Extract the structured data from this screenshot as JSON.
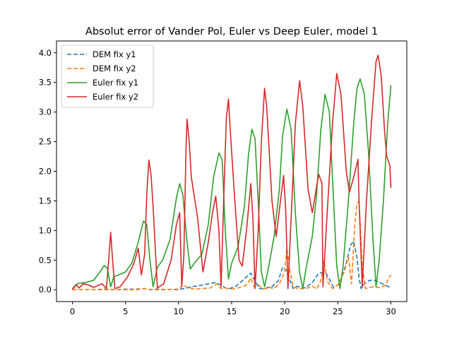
{
  "chart_data": {
    "type": "line",
    "title": "Absolut error of Vander Pol, Euler vs Deep Euler, model 1",
    "xlabel": "",
    "ylabel": "",
    "xlim": [
      -1.5,
      31.5
    ],
    "ylim": [
      -0.2,
      4.2
    ],
    "xticks": [
      0,
      5,
      10,
      15,
      20,
      25,
      30
    ],
    "yticks": [
      0.0,
      0.5,
      1.0,
      1.5,
      2.0,
      2.5,
      3.0,
      3.5,
      4.0
    ],
    "xtick_labels": [
      "0",
      "5",
      "10",
      "15",
      "20",
      "25",
      "30"
    ],
    "ytick_labels": [
      "0.0",
      "0.5",
      "1.0",
      "1.5",
      "2.0",
      "2.5",
      "3.0",
      "3.5",
      "4.0"
    ],
    "grid": false,
    "legend_position": "upper-left",
    "series": [
      {
        "name": "DEM fix y1",
        "color": "#1f77b4",
        "dash": "dashed",
        "points": [
          [
            0,
            0
          ],
          [
            1,
            0
          ],
          [
            2,
            0
          ],
          [
            3,
            0.01
          ],
          [
            4,
            0
          ],
          [
            5,
            0.01
          ],
          [
            6,
            0.01
          ],
          [
            6.8,
            0.02
          ],
          [
            7.2,
            0
          ],
          [
            8,
            0.01
          ],
          [
            9,
            0
          ],
          [
            10,
            0.01
          ],
          [
            10.6,
            0.02
          ],
          [
            11.2,
            0.05
          ],
          [
            12,
            0.07
          ],
          [
            12.8,
            0.1
          ],
          [
            13.4,
            0.12
          ],
          [
            14,
            0.08
          ],
          [
            14.4,
            0.03
          ],
          [
            14.8,
            0.02
          ],
          [
            15.4,
            0.06
          ],
          [
            16,
            0.15
          ],
          [
            16.8,
            0.28
          ],
          [
            17.2,
            0.15
          ],
          [
            17.6,
            0.02
          ],
          [
            18,
            0.02
          ],
          [
            18.8,
            0.05
          ],
          [
            19.4,
            0.15
          ],
          [
            19.8,
            0.38
          ],
          [
            20.2,
            0.32
          ],
          [
            20.5,
            0.15
          ],
          [
            20.8,
            0.02
          ],
          [
            21.2,
            0.06
          ],
          [
            21.6,
            0.02
          ],
          [
            22,
            0.04
          ],
          [
            22.6,
            0.12
          ],
          [
            23.2,
            0.28
          ],
          [
            23.8,
            0.3
          ],
          [
            24.2,
            0.18
          ],
          [
            24.6,
            0.04
          ],
          [
            25.2,
            0.1
          ],
          [
            25.8,
            0.45
          ],
          [
            26.2,
            0.75
          ],
          [
            26.5,
            0.82
          ],
          [
            26.8,
            0.55
          ],
          [
            27,
            0.2
          ],
          [
            27.2,
            0.02
          ],
          [
            27.5,
            0.1
          ],
          [
            28,
            0.16
          ],
          [
            28.6,
            0.15
          ],
          [
            29.2,
            0.1
          ],
          [
            29.8,
            0.05
          ],
          [
            30,
            0.03
          ]
        ]
      },
      {
        "name": "DEM fix y2",
        "color": "#ff7f0e",
        "dash": "dashed",
        "points": [
          [
            0,
            0
          ],
          [
            1,
            0
          ],
          [
            2,
            0
          ],
          [
            3,
            0
          ],
          [
            4,
            0
          ],
          [
            5,
            0
          ],
          [
            6,
            0
          ],
          [
            6.8,
            0.02
          ],
          [
            7.2,
            0
          ],
          [
            8,
            0
          ],
          [
            9,
            0
          ],
          [
            10,
            0
          ],
          [
            10.4,
            0.08
          ],
          [
            10.8,
            0.04
          ],
          [
            11.5,
            0.01
          ],
          [
            12.2,
            0.02
          ],
          [
            13,
            0.03
          ],
          [
            13.6,
            0.1
          ],
          [
            14,
            0.02
          ],
          [
            14.4,
            0.03
          ],
          [
            15,
            0.01
          ],
          [
            15.6,
            0.03
          ],
          [
            16.4,
            0.08
          ],
          [
            16.8,
            0.2
          ],
          [
            17.1,
            0.05
          ],
          [
            17.5,
            0.08
          ],
          [
            18,
            0.01
          ],
          [
            18.5,
            0.04
          ],
          [
            19,
            0.02
          ],
          [
            19.5,
            0.1
          ],
          [
            20,
            0.3
          ],
          [
            20.2,
            0.7
          ],
          [
            20.5,
            0.3
          ],
          [
            20.8,
            0.05
          ],
          [
            21.2,
            0.02
          ],
          [
            22,
            0.02
          ],
          [
            22.6,
            0.06
          ],
          [
            23,
            0.01
          ],
          [
            23.4,
            0.15
          ],
          [
            23.7,
            0.5
          ],
          [
            24,
            0.15
          ],
          [
            24.5,
            0.02
          ],
          [
            25,
            0.08
          ],
          [
            25.6,
            0.3
          ],
          [
            26,
            0.55
          ],
          [
            26.3,
            0.1
          ],
          [
            26.6,
            1.1
          ],
          [
            26.8,
            1.45
          ],
          [
            27,
            1.5
          ],
          [
            27.3,
            0.4
          ],
          [
            27.6,
            0.02
          ],
          [
            28,
            0.04
          ],
          [
            28.5,
            0.05
          ],
          [
            29,
            0.03
          ],
          [
            29.5,
            0.08
          ],
          [
            29.8,
            0.2
          ],
          [
            30,
            0.25
          ]
        ]
      },
      {
        "name": "Euler fix y1",
        "color": "#2ca02c",
        "dash": "solid",
        "points": [
          [
            0,
            0.02
          ],
          [
            0.3,
            0.08
          ],
          [
            0.6,
            0.11
          ],
          [
            1.2,
            0.12
          ],
          [
            2,
            0.16
          ],
          [
            2.6,
            0.3
          ],
          [
            3,
            0.41
          ],
          [
            3.3,
            0.36
          ],
          [
            3.6,
            0.05
          ],
          [
            3.9,
            0.22
          ],
          [
            4.2,
            0.24
          ],
          [
            5,
            0.3
          ],
          [
            5.6,
            0.45
          ],
          [
            6.2,
            0.8
          ],
          [
            6.7,
            1.16
          ],
          [
            7,
            1.1
          ],
          [
            7.3,
            0.5
          ],
          [
            7.6,
            0.05
          ],
          [
            8,
            0.38
          ],
          [
            8.5,
            0.5
          ],
          [
            9.2,
            0.85
          ],
          [
            9.8,
            1.55
          ],
          [
            10.1,
            1.79
          ],
          [
            10.4,
            1.6
          ],
          [
            10.8,
            0.8
          ],
          [
            11.1,
            0.35
          ],
          [
            11.5,
            0.45
          ],
          [
            12.2,
            0.6
          ],
          [
            12.8,
            1.1
          ],
          [
            13.3,
            1.9
          ],
          [
            13.8,
            2.31
          ],
          [
            14.1,
            2.2
          ],
          [
            14.4,
            1.0
          ],
          [
            14.7,
            0.18
          ],
          [
            15,
            0.45
          ],
          [
            15.6,
            0.72
          ],
          [
            16.2,
            1.4
          ],
          [
            16.6,
            2.3
          ],
          [
            16.9,
            2.71
          ],
          [
            17.2,
            2.55
          ],
          [
            17.5,
            1.5
          ],
          [
            17.8,
            0.3
          ],
          [
            18.1,
            0.05
          ],
          [
            18.5,
            0.4
          ],
          [
            19,
            0.9
          ],
          [
            19.5,
            1.7
          ],
          [
            19.8,
            2.6
          ],
          [
            20.2,
            3.05
          ],
          [
            20.6,
            2.7
          ],
          [
            21,
            1.3
          ],
          [
            21.4,
            0.3
          ],
          [
            21.7,
            0.02
          ],
          [
            22,
            0.35
          ],
          [
            22.6,
            0.9
          ],
          [
            23,
            1.6
          ],
          [
            23.4,
            2.7
          ],
          [
            23.8,
            3.3
          ],
          [
            24.2,
            3.0
          ],
          [
            24.6,
            1.5
          ],
          [
            24.9,
            0.4
          ],
          [
            25.2,
            0.02
          ],
          [
            25.5,
            0.4
          ],
          [
            26,
            1.5
          ],
          [
            26.5,
            2.8
          ],
          [
            26.8,
            3.4
          ],
          [
            27.1,
            3.56
          ],
          [
            27.5,
            3.3
          ],
          [
            27.9,
            2.3
          ],
          [
            28.3,
            0.9
          ],
          [
            28.6,
            0.05
          ],
          [
            28.9,
            0.5
          ],
          [
            29.3,
            1.5
          ],
          [
            29.7,
            2.8
          ],
          [
            30,
            3.45
          ]
        ]
      },
      {
        "name": "Euler fix y2",
        "color": "#d62728",
        "dash": "solid",
        "points": [
          [
            0,
            0
          ],
          [
            0.2,
            0.05
          ],
          [
            0.4,
            0.08
          ],
          [
            0.6,
            0.03
          ],
          [
            0.8,
            0.06
          ],
          [
            1,
            0.1
          ],
          [
            1.5,
            0.08
          ],
          [
            2,
            0.04
          ],
          [
            2.8,
            0.1
          ],
          [
            3.2,
            0.02
          ],
          [
            3.4,
            0.45
          ],
          [
            3.6,
            0.97
          ],
          [
            3.8,
            0.45
          ],
          [
            4,
            0.02
          ],
          [
            4.5,
            0.05
          ],
          [
            5.2,
            0.22
          ],
          [
            5.8,
            0.45
          ],
          [
            6.2,
            0.7
          ],
          [
            6.5,
            0.25
          ],
          [
            6.8,
            0.6
          ],
          [
            7,
            1.6
          ],
          [
            7.2,
            2.19
          ],
          [
            7.4,
            1.95
          ],
          [
            7.6,
            1.4
          ],
          [
            8,
            0.03
          ],
          [
            8.6,
            0.1
          ],
          [
            9.3,
            0.5
          ],
          [
            9.8,
            1.1
          ],
          [
            10.1,
            1.3
          ],
          [
            10.3,
            0.05
          ],
          [
            10.5,
            0.6
          ],
          [
            10.7,
            2.4
          ],
          [
            10.8,
            2.88
          ],
          [
            11,
            2.5
          ],
          [
            11.2,
            1.9
          ],
          [
            11.8,
            1.2
          ],
          [
            12.3,
            0.3
          ],
          [
            12.8,
            0.8
          ],
          [
            13.2,
            1.3
          ],
          [
            13.5,
            1.58
          ],
          [
            13.8,
            1.0
          ],
          [
            14,
            0.05
          ],
          [
            14.3,
            1.8
          ],
          [
            14.5,
            2.9
          ],
          [
            14.7,
            3.22
          ],
          [
            14.9,
            2.6
          ],
          [
            15.3,
            1.5
          ],
          [
            15.7,
            0.5
          ],
          [
            16,
            0.4
          ],
          [
            16.4,
            1.0
          ],
          [
            16.8,
            1.79
          ],
          [
            17,
            1.2
          ],
          [
            17.2,
            0.02
          ],
          [
            17.5,
            1.0
          ],
          [
            17.8,
            2.5
          ],
          [
            18.1,
            3.4
          ],
          [
            18.3,
            3.1
          ],
          [
            18.8,
            1.5
          ],
          [
            19.2,
            0.9
          ],
          [
            19.6,
            1.5
          ],
          [
            19.9,
            1.93
          ],
          [
            20.1,
            1.3
          ],
          [
            20.3,
            0.02
          ],
          [
            20.6,
            1.2
          ],
          [
            21,
            2.8
          ],
          [
            21.4,
            3.53
          ],
          [
            21.7,
            3.1
          ],
          [
            22.2,
            1.7
          ],
          [
            22.6,
            1.3
          ],
          [
            23.2,
            1.95
          ],
          [
            23.5,
            1.8
          ],
          [
            23.6,
            0.05
          ],
          [
            24,
            1.3
          ],
          [
            24.5,
            2.8
          ],
          [
            24.9,
            3.65
          ],
          [
            25.3,
            3.3
          ],
          [
            25.8,
            2.0
          ],
          [
            26.1,
            1.65
          ],
          [
            26.5,
            1.9
          ],
          [
            26.9,
            2.2
          ],
          [
            27,
            1.5
          ],
          [
            27.3,
            0.05
          ],
          [
            27.7,
            1.5
          ],
          [
            28.2,
            2.9
          ],
          [
            28.6,
            3.85
          ],
          [
            28.8,
            3.96
          ],
          [
            29.1,
            3.6
          ],
          [
            29.4,
            2.7
          ],
          [
            29.6,
            2.26
          ],
          [
            29.9,
            2.1
          ],
          [
            30,
            1.72
          ]
        ]
      }
    ]
  }
}
